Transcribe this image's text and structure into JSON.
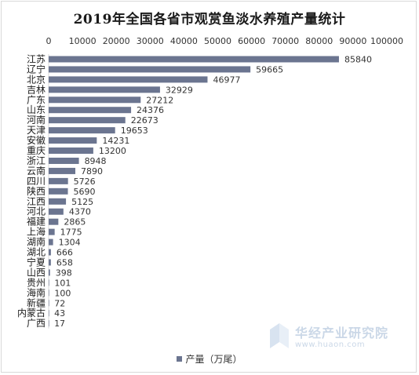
{
  "chart_data": {
    "type": "bar",
    "orientation": "horizontal",
    "title": "2019年全国各省市观赏鱼淡水养殖产量统计",
    "categories": [
      "江苏",
      "辽宁",
      "北京",
      "吉林",
      "广东",
      "山东",
      "河南",
      "天津",
      "安徽",
      "重庆",
      "浙江",
      "云南",
      "四川",
      "陕西",
      "江西",
      "河北",
      "福建",
      "上海",
      "湖南",
      "湖北",
      "宁夏",
      "山西",
      "贵州",
      "海南",
      "新疆",
      "内蒙古",
      "广西"
    ],
    "series": [
      {
        "name": "产量（万尾）",
        "values": [
          85840,
          59665,
          46977,
          32929,
          27212,
          24376,
          22673,
          19653,
          14231,
          13200,
          8948,
          7890,
          5726,
          5690,
          5125,
          4370,
          2865,
          1775,
          1304,
          666,
          658,
          398,
          101,
          100,
          72,
          43,
          17
        ]
      }
    ],
    "xlim": [
      0,
      100000
    ],
    "ticks": [
      0,
      10000,
      20000,
      30000,
      40000,
      50000,
      60000,
      70000,
      80000,
      90000,
      100000
    ],
    "axis_position": "top",
    "legend_position": "bottom",
    "grid": false,
    "bar_color": "#6b7590"
  },
  "watermark": {
    "name": "华经产业研究院",
    "url": "www.huaon.com"
  }
}
